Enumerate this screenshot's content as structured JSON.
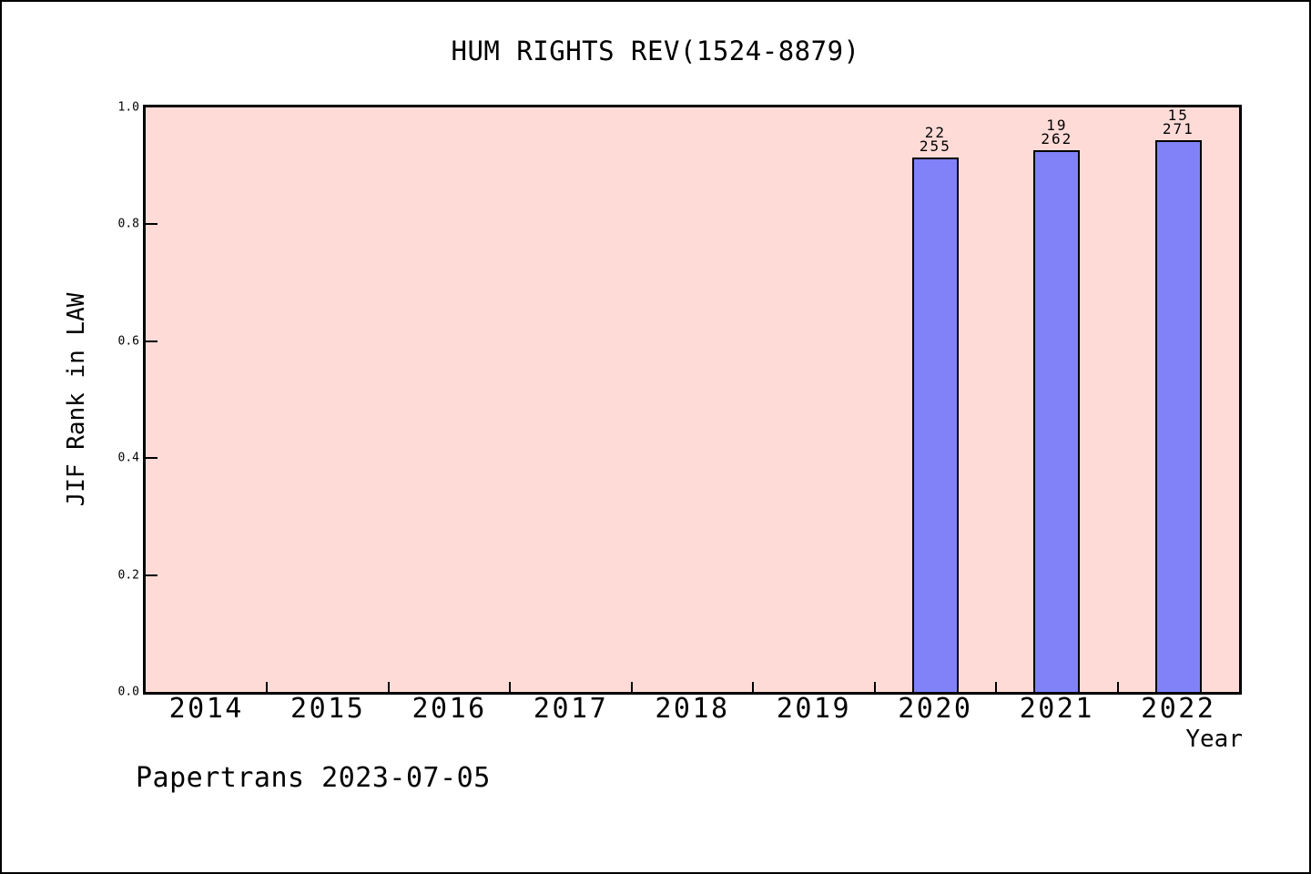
{
  "footer": {
    "label": "Papertrans 2023-07-05"
  },
  "colors": {
    "page_bg": "#ffffff",
    "plot_bg": "#ffdbd7",
    "bar_fill": "#8181f8",
    "axis": "#000000"
  },
  "chart_data": {
    "type": "bar",
    "title": "HUM RIGHTS REV(1524-8879)",
    "xlabel": "Year",
    "ylabel": "JIF Rank in LAW",
    "x_categories": [
      "2014",
      "2015",
      "2016",
      "2017",
      "2018",
      "2019",
      "2020",
      "2021",
      "2022"
    ],
    "y_ticks": [
      "0.0",
      "0.2",
      "0.4",
      "0.6",
      "0.8",
      "1.0"
    ],
    "ylim": [
      0.0,
      1.0
    ],
    "grid": "off",
    "legend": "none",
    "bars": [
      {
        "category": "2020",
        "rank": 22,
        "total": 255,
        "value": 0.9137
      },
      {
        "category": "2021",
        "rank": 19,
        "total": 262,
        "value": 0.9275
      },
      {
        "category": "2022",
        "rank": 15,
        "total": 271,
        "value": 0.9446
      }
    ]
  }
}
